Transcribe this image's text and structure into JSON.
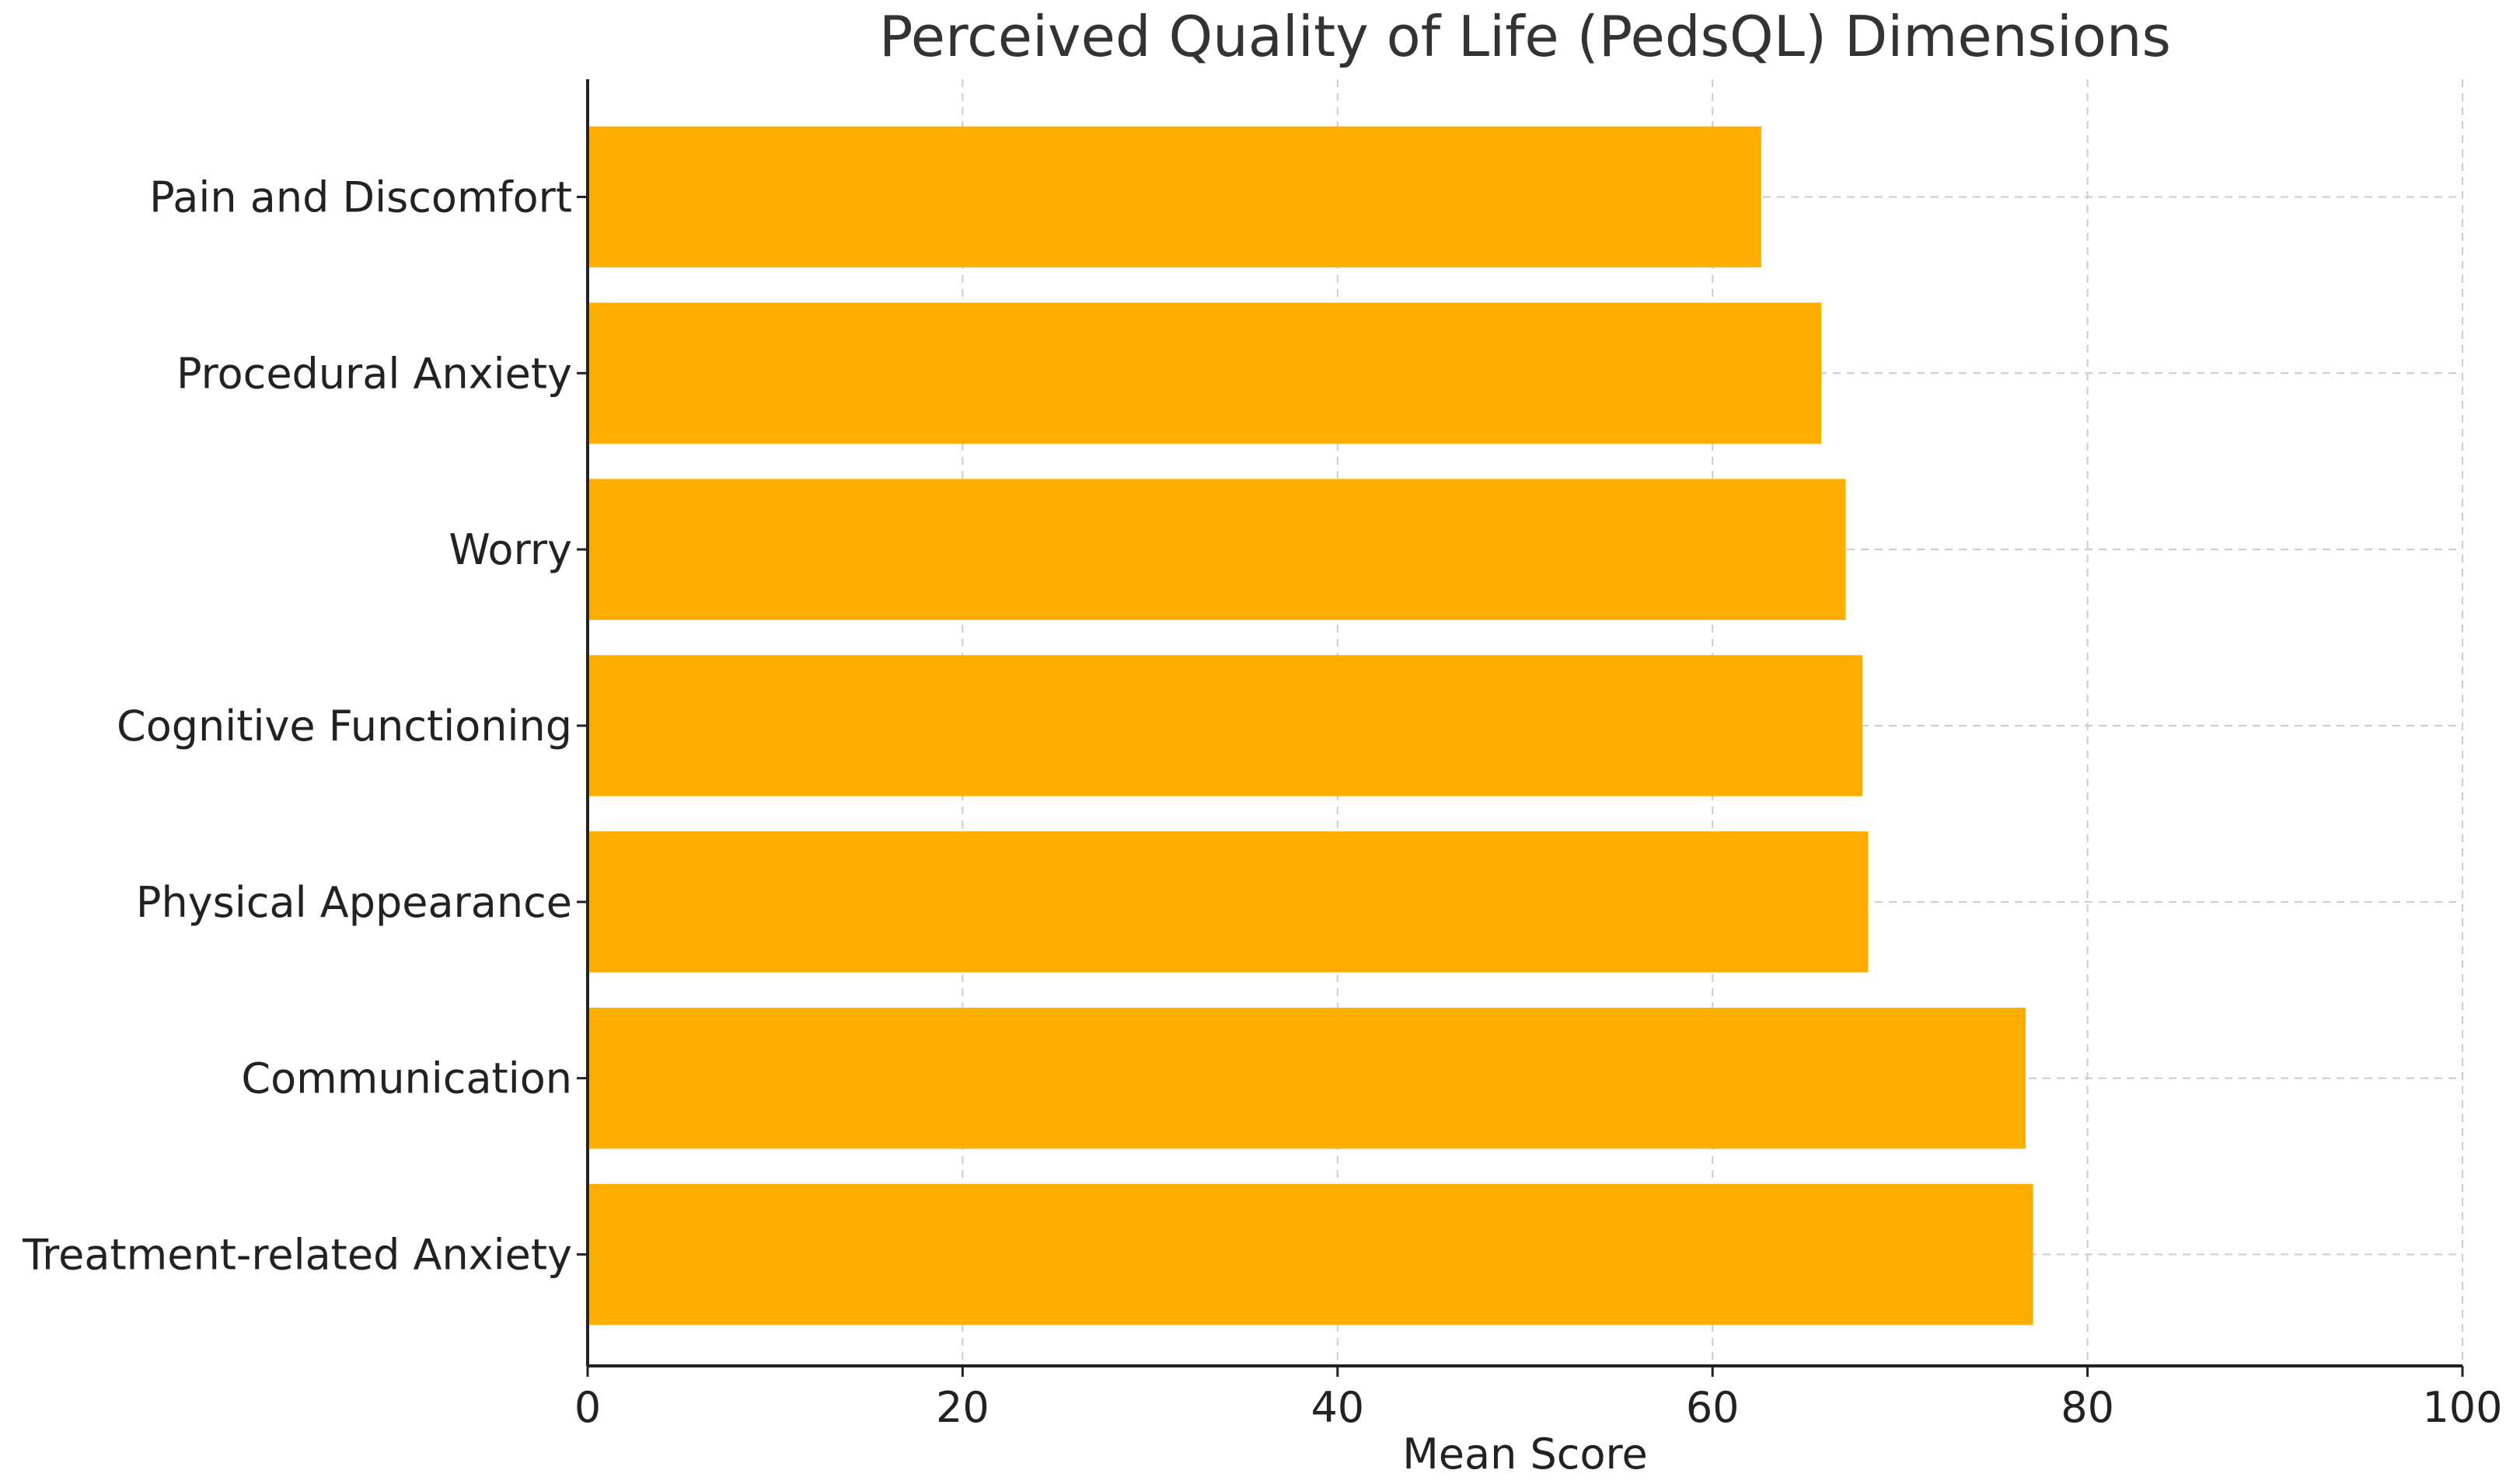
{
  "chart_data": {
    "type": "bar",
    "orientation": "horizontal",
    "title": "Perceived Quality of Life (PedsQL) Dimensions",
    "xlabel": "Mean Score",
    "ylabel": "",
    "xlim": [
      0,
      100
    ],
    "xticks": [
      "0",
      "20",
      "40",
      "60",
      "80",
      "100"
    ],
    "grid": true,
    "bar_color": "#FFAE00",
    "categories": [
      "Pain and Discomfort",
      "Procedural Anxiety",
      "Worry",
      "Cognitive Functioning",
      "Physical Appearance",
      "Communication",
      "Treatment-related Anxiety"
    ],
    "values": [
      62.6,
      65.8,
      67.1,
      68.0,
      68.3,
      76.7,
      77.1
    ]
  }
}
